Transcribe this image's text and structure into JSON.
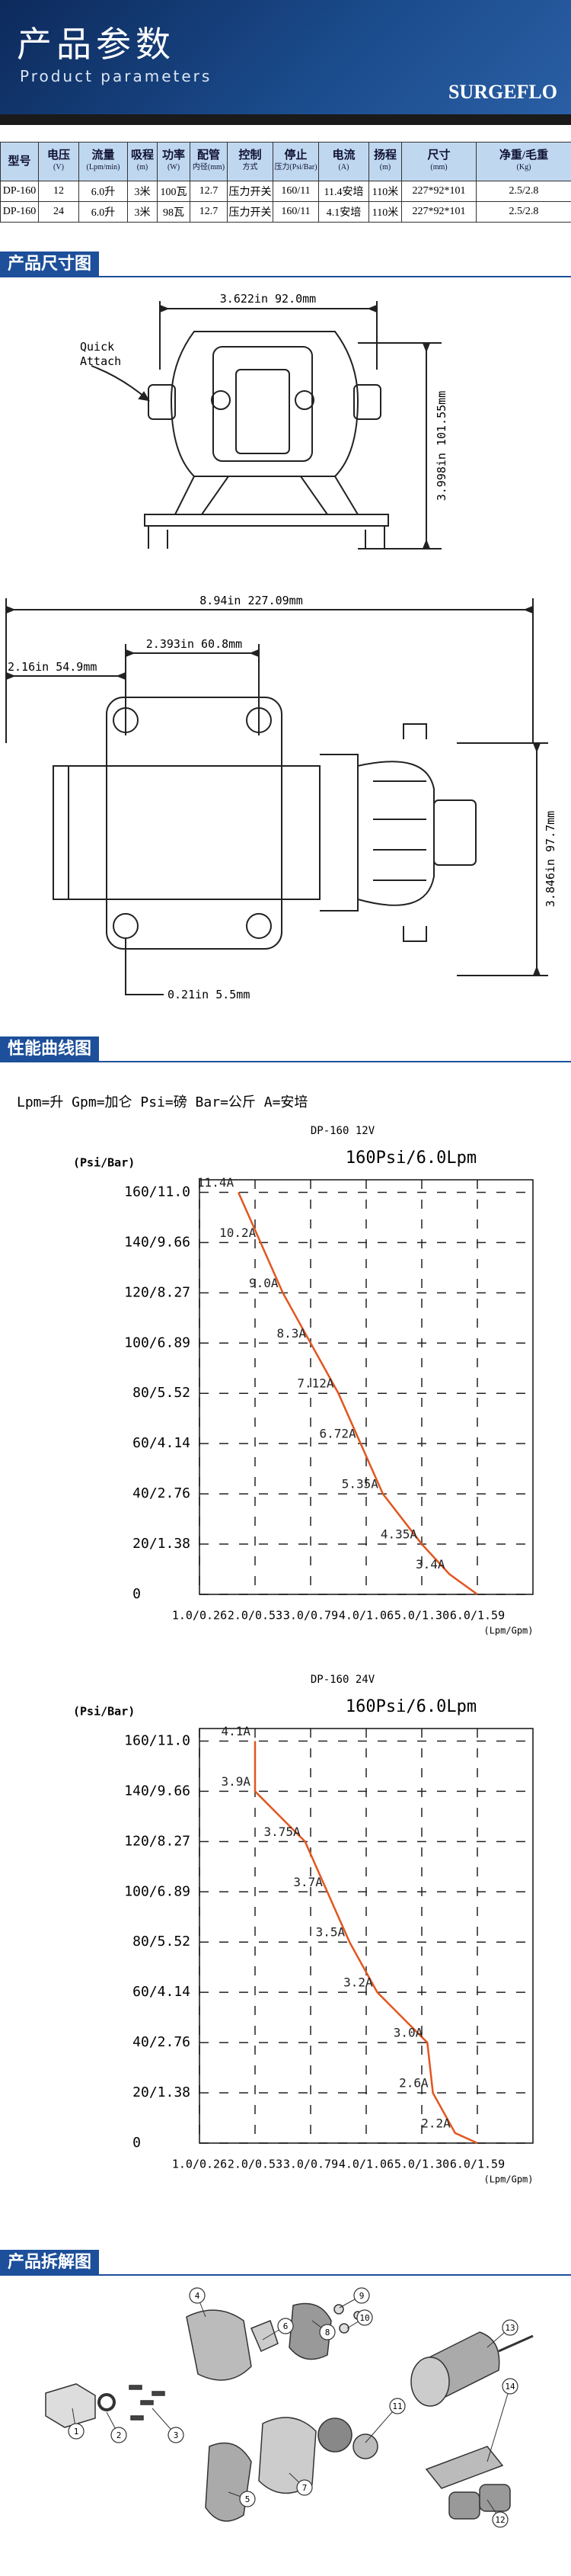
{
  "header": {
    "title": "产品参数",
    "subtitle": "Product parameters",
    "logo": "SURGEFLO"
  },
  "spec_table": {
    "headers": [
      {
        "name": "型号"
      },
      {
        "name": "电压",
        "unit": "(V)"
      },
      {
        "name": "流量",
        "unit": "(Lpm/min)"
      },
      {
        "name": "吸程",
        "unit": "(m)"
      },
      {
        "name": "功率",
        "unit": "(W)"
      },
      {
        "name": "配管",
        "unit": "内径(mm)"
      },
      {
        "name": "控制",
        "unit": "方式"
      },
      {
        "name": "停止",
        "unit": "压力(Psi/Bar)"
      },
      {
        "name": "电流",
        "unit": "(A)"
      },
      {
        "name": "扬程",
        "unit": "(m)"
      },
      {
        "name": "尺寸",
        "unit": "(mm)"
      },
      {
        "name": "净重/毛重",
        "unit": "(Kg)"
      }
    ],
    "rows": [
      [
        "DP-160",
        "12",
        "6.0升",
        "3米",
        "100瓦",
        "12.7",
        "压力开关",
        "160/11",
        "11.4安培",
        "110米",
        "227*92*101",
        "2.5/2.8"
      ],
      [
        "DP-160",
        "24",
        "6.0升",
        "3米",
        "98瓦",
        "12.7",
        "压力开关",
        "160/11",
        "4.1安培",
        "110米",
        "227*92*101",
        "2.5/2.8"
      ]
    ]
  },
  "dimensions": {
    "heading": "产品尺寸图",
    "top_width": "3.622in 92.0mm",
    "top_height": "3.998in 101.55mm",
    "quick_attach": [
      "Quick",
      "Attach"
    ],
    "side_length": "8.94in 227.09mm",
    "hole_spacing": "2.393in 60.8mm",
    "hole_offset": "2.16in 54.9mm",
    "side_height": "3.846in 97.7mm",
    "hole_diameter": "0.21in 5.5mm"
  },
  "performance": {
    "heading": "性能曲线图",
    "legend": "Lpm=升  Gpm=加仑  Psi=磅  Bar=公斤  A=安培",
    "charts": [
      {
        "type": "line",
        "title": "DP-160 12V",
        "subtitle": "160Psi/6.0Lpm",
        "y_label": "(Psi/Bar)",
        "x_label": "(Lpm/Gpm)",
        "color": "#e2561f",
        "x": [
          1.7,
          2.1,
          2.5,
          3.0,
          3.5,
          3.9,
          4.3,
          5.0,
          5.5,
          6.0
        ],
        "values": [
          160,
          140,
          120,
          100,
          80,
          60,
          40,
          20,
          8,
          0
        ],
        "value_labels": [
          "11.4A",
          "10.2A",
          "9.0A",
          "8.3A",
          "7.12A",
          "6.72A",
          "5.35A",
          "4.35A",
          "3.4A",
          null
        ],
        "xlim": [
          1,
          7
        ],
        "ylim": [
          0,
          165
        ],
        "xticks": [
          {
            "value": 1,
            "label": "1.0/0.26"
          },
          {
            "value": 2,
            "label": "2.0/0.53"
          },
          {
            "value": 3,
            "label": "3.0/0.79"
          },
          {
            "value": 4,
            "label": "4.0/1.06"
          },
          {
            "value": 5,
            "label": "5.0/1.30"
          },
          {
            "value": 6,
            "label": "6.0/1.59"
          }
        ],
        "yticks": [
          0,
          {
            "value": 20,
            "label": "20/1.38"
          },
          {
            "value": 40,
            "label": "40/2.76"
          },
          {
            "value": 60,
            "label": "60/4.14"
          },
          {
            "value": 80,
            "label": "80/5.52"
          },
          {
            "value": 100,
            "label": "100/6.89"
          },
          {
            "value": 120,
            "label": "120/8.27"
          },
          {
            "value": 140,
            "label": "140/9.66"
          },
          {
            "value": 160,
            "label": "160/11.0"
          }
        ],
        "grid": true
      },
      {
        "type": "line",
        "title": "DP-160 24V",
        "subtitle": "160Psi/6.0Lpm",
        "y_label": "(Psi/Bar)",
        "x_label": "(Lpm/Gpm)",
        "color": "#e2561f",
        "x": [
          2.0,
          2.0,
          2.9,
          3.3,
          3.7,
          4.2,
          5.1,
          5.2,
          5.6,
          6.0
        ],
        "values": [
          160,
          140,
          120,
          100,
          80,
          60,
          40,
          20,
          4,
          0
        ],
        "value_labels": [
          "4.1A",
          "3.9A",
          "3.75A",
          "3.7A",
          "3.5A",
          "3.2A",
          "3.0A",
          "2.6A",
          "2.2A",
          null
        ],
        "xlim": [
          1,
          7
        ],
        "ylim": [
          0,
          165
        ],
        "xticks": [
          {
            "value": 1,
            "label": "1.0/0.26"
          },
          {
            "value": 2,
            "label": "2.0/0.53"
          },
          {
            "value": 3,
            "label": "3.0/0.79"
          },
          {
            "value": 4,
            "label": "4.0/1.06"
          },
          {
            "value": 5,
            "label": "5.0/1.30"
          },
          {
            "value": 6,
            "label": "6.0/1.59"
          }
        ],
        "yticks": [
          0,
          {
            "value": 20,
            "label": "20/1.38"
          },
          {
            "value": 40,
            "label": "40/2.76"
          },
          {
            "value": 60,
            "label": "60/4.14"
          },
          {
            "value": 80,
            "label": "80/5.52"
          },
          {
            "value": 100,
            "label": "100/6.89"
          },
          {
            "value": 120,
            "label": "120/8.27"
          },
          {
            "value": 140,
            "label": "140/9.66"
          },
          {
            "value": 160,
            "label": "160/11.0"
          }
        ],
        "grid": true
      }
    ]
  },
  "exploded": {
    "heading": "产品拆解图",
    "parts": [
      "1",
      "2",
      "3",
      "4",
      "5",
      "6",
      "7",
      "8",
      "9",
      "10",
      "11",
      "12",
      "13",
      "14"
    ]
  }
}
